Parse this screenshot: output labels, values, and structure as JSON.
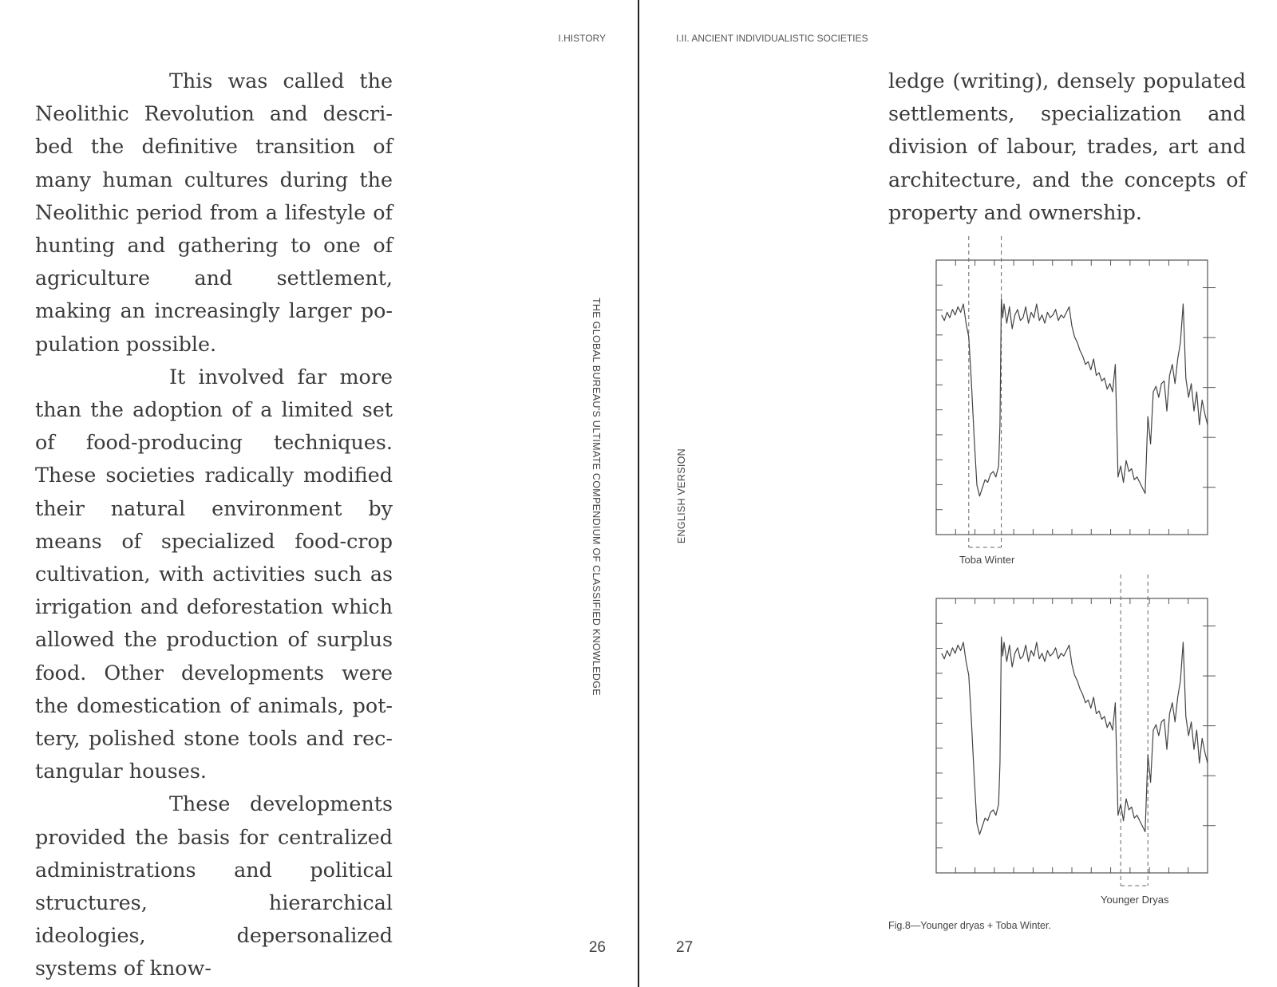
{
  "left_page": {
    "running_head": "I.HISTORY",
    "spine_title": "THE GLOBAL BUREAU'S ULTIMATE COMPENDIUM OF CLASSIFIED KNOWLEDGE",
    "page_number": "26",
    "paragraphs": [
      "This was called the Neolithic Revolution and descri­bed the definitive transition of many human cultures during the Neolithic period from a lifestyle of hunting and gathering to one of agriculture and settlement, making an increasingly larger po­pulation possible.",
      "It involved far more than the adoption of a limited set of food-producing techniques. These societies radically modi­fied their natural environment by means of specialized food-crop cultivation, with activities such as irrigation and deforestation which allowed the production of surplus food. Other developments were the domestication of animals, pot­tery, polished stone tools and rec­tangular houses.",
      "These developments provided the basis for centrali­zed administrations and political structures, hierarchical ideologies, depersonalized systems of know-"
    ]
  },
  "right_page": {
    "running_head": "I.II. ANCIENT INDIVIDUALISTIC SOCIETIES",
    "edition": "ENGLISH VERSION",
    "page_number": "27",
    "paragraph": "ledge (writing), densely populated settlements, specialization and division of labour, trades, art and architecture, and the concepts of property and ownership.",
    "figure_caption": "Fig.8—Younger dryas + Toba Winter."
  },
  "chart_data": [
    {
      "type": "line",
      "highlight_label": "Toba Winter",
      "highlight_range": [
        0.12,
        0.24
      ],
      "xlim": [
        0,
        1
      ],
      "ylim": [
        0,
        1
      ],
      "x": [
        0.02,
        0.03,
        0.04,
        0.05,
        0.06,
        0.07,
        0.08,
        0.09,
        0.1,
        0.11,
        0.12,
        0.13,
        0.14,
        0.15,
        0.16,
        0.17,
        0.18,
        0.19,
        0.2,
        0.21,
        0.22,
        0.23,
        0.235,
        0.24,
        0.245,
        0.25,
        0.26,
        0.27,
        0.28,
        0.29,
        0.3,
        0.31,
        0.32,
        0.33,
        0.34,
        0.35,
        0.36,
        0.37,
        0.38,
        0.39,
        0.4,
        0.41,
        0.42,
        0.43,
        0.44,
        0.45,
        0.46,
        0.47,
        0.48,
        0.49,
        0.5,
        0.51,
        0.52,
        0.53,
        0.54,
        0.55,
        0.56,
        0.57,
        0.58,
        0.59,
        0.6,
        0.61,
        0.62,
        0.63,
        0.64,
        0.65,
        0.66,
        0.67,
        0.68,
        0.69,
        0.7,
        0.71,
        0.72,
        0.73,
        0.74,
        0.75,
        0.76,
        0.77,
        0.78,
        0.79,
        0.8,
        0.81,
        0.82,
        0.83,
        0.84,
        0.85,
        0.86,
        0.87,
        0.88,
        0.89,
        0.9,
        0.91,
        0.92,
        0.93,
        0.94,
        0.95,
        0.96,
        0.97,
        0.98,
        0.99,
        1.0
      ],
      "y": [
        0.8,
        0.78,
        0.81,
        0.79,
        0.82,
        0.8,
        0.83,
        0.81,
        0.84,
        0.77,
        0.72,
        0.55,
        0.35,
        0.18,
        0.14,
        0.17,
        0.2,
        0.19,
        0.22,
        0.23,
        0.21,
        0.25,
        0.4,
        0.86,
        0.79,
        0.84,
        0.77,
        0.83,
        0.75,
        0.8,
        0.82,
        0.78,
        0.79,
        0.83,
        0.77,
        0.81,
        0.79,
        0.84,
        0.78,
        0.8,
        0.77,
        0.81,
        0.79,
        0.8,
        0.82,
        0.78,
        0.8,
        0.79,
        0.81,
        0.83,
        0.76,
        0.72,
        0.7,
        0.67,
        0.65,
        0.62,
        0.63,
        0.6,
        0.64,
        0.58,
        0.59,
        0.56,
        0.57,
        0.53,
        0.55,
        0.52,
        0.62,
        0.21,
        0.25,
        0.19,
        0.27,
        0.23,
        0.24,
        0.2,
        0.21,
        0.19,
        0.17,
        0.15,
        0.43,
        0.33,
        0.52,
        0.54,
        0.5,
        0.55,
        0.56,
        0.45,
        0.58,
        0.62,
        0.55,
        0.64,
        0.7,
        0.84,
        0.57,
        0.5,
        0.55,
        0.45,
        0.52,
        0.4,
        0.49,
        0.44,
        0.4
      ]
    },
    {
      "type": "line",
      "highlight_label": "Younger Dryas",
      "highlight_range": [
        0.68,
        0.78
      ],
      "xlim": [
        0,
        1
      ],
      "ylim": [
        0,
        1
      ],
      "x": [
        0.02,
        0.03,
        0.04,
        0.05,
        0.06,
        0.07,
        0.08,
        0.09,
        0.1,
        0.11,
        0.12,
        0.13,
        0.14,
        0.15,
        0.16,
        0.17,
        0.18,
        0.19,
        0.2,
        0.21,
        0.22,
        0.23,
        0.235,
        0.24,
        0.245,
        0.25,
        0.26,
        0.27,
        0.28,
        0.29,
        0.3,
        0.31,
        0.32,
        0.33,
        0.34,
        0.35,
        0.36,
        0.37,
        0.38,
        0.39,
        0.4,
        0.41,
        0.42,
        0.43,
        0.44,
        0.45,
        0.46,
        0.47,
        0.48,
        0.49,
        0.5,
        0.51,
        0.52,
        0.53,
        0.54,
        0.55,
        0.56,
        0.57,
        0.58,
        0.59,
        0.6,
        0.61,
        0.62,
        0.63,
        0.64,
        0.65,
        0.66,
        0.67,
        0.68,
        0.69,
        0.7,
        0.71,
        0.72,
        0.73,
        0.74,
        0.75,
        0.76,
        0.77,
        0.78,
        0.79,
        0.8,
        0.81,
        0.82,
        0.83,
        0.84,
        0.85,
        0.86,
        0.87,
        0.88,
        0.89,
        0.9,
        0.91,
        0.92,
        0.93,
        0.94,
        0.95,
        0.96,
        0.97,
        0.98,
        0.99,
        1.0
      ],
      "y": [
        0.8,
        0.78,
        0.81,
        0.79,
        0.82,
        0.8,
        0.83,
        0.81,
        0.84,
        0.77,
        0.72,
        0.55,
        0.35,
        0.18,
        0.14,
        0.17,
        0.2,
        0.19,
        0.22,
        0.23,
        0.21,
        0.25,
        0.4,
        0.86,
        0.79,
        0.84,
        0.77,
        0.83,
        0.75,
        0.8,
        0.82,
        0.78,
        0.79,
        0.83,
        0.77,
        0.81,
        0.79,
        0.84,
        0.78,
        0.8,
        0.77,
        0.81,
        0.79,
        0.8,
        0.82,
        0.78,
        0.8,
        0.79,
        0.81,
        0.83,
        0.76,
        0.72,
        0.7,
        0.67,
        0.65,
        0.62,
        0.63,
        0.6,
        0.64,
        0.58,
        0.59,
        0.56,
        0.57,
        0.53,
        0.55,
        0.52,
        0.62,
        0.21,
        0.25,
        0.19,
        0.27,
        0.23,
        0.24,
        0.2,
        0.21,
        0.19,
        0.17,
        0.15,
        0.43,
        0.33,
        0.52,
        0.54,
        0.5,
        0.55,
        0.56,
        0.45,
        0.58,
        0.62,
        0.55,
        0.64,
        0.7,
        0.84,
        0.57,
        0.5,
        0.55,
        0.45,
        0.52,
        0.4,
        0.49,
        0.44,
        0.4
      ]
    }
  ]
}
